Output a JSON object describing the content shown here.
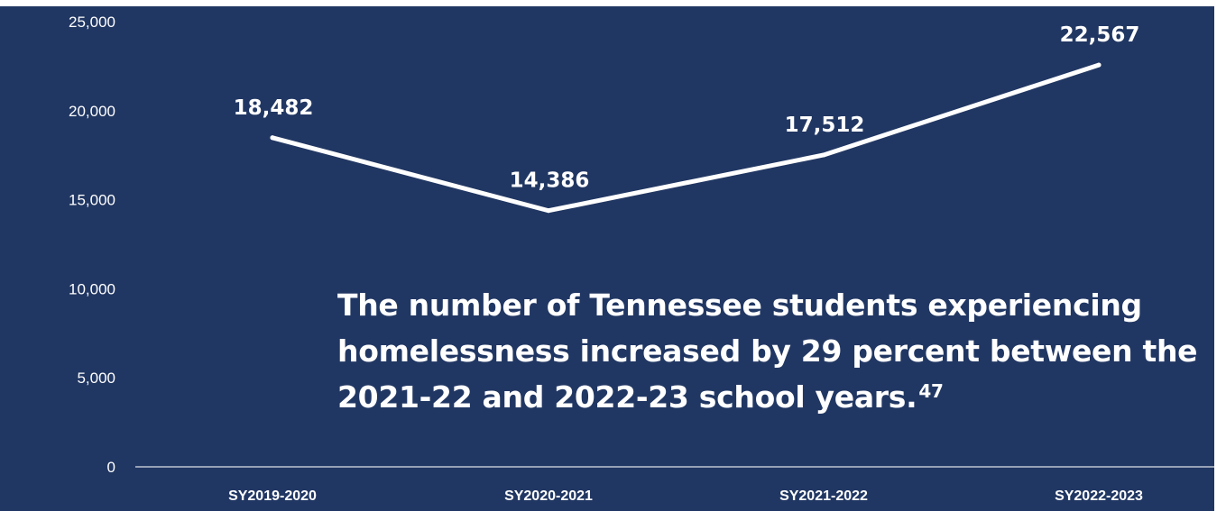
{
  "colors": {
    "background": "#213763",
    "line": "#ffffff",
    "axis": "#ffffff",
    "text": "#ffffff",
    "outer": "#ffffff"
  },
  "chart_data": {
    "type": "line",
    "categories": [
      "SY2019-2020",
      "SY2020-2021",
      "SY2021-2022",
      "SY2022-2023"
    ],
    "series": [
      {
        "values": [
          18482,
          14386,
          17512,
          22567
        ]
      }
    ],
    "data_labels": [
      "18,482",
      "14,386",
      "17,512",
      "22,567"
    ],
    "y_ticks": [
      0,
      5000,
      10000,
      15000,
      20000,
      25000
    ],
    "y_tick_labels": [
      "0",
      "5,000",
      "10,000",
      "15,000",
      "20,000",
      "25,000"
    ],
    "ylim": [
      0,
      25000
    ],
    "grid": false,
    "legend": "none",
    "annotation": {
      "lines": [
        "The number of Tennessee students experiencing",
        "homelessness increased by 29 percent between the",
        "2021-22 and 2022-23 school years."
      ],
      "footnote": "47"
    }
  }
}
